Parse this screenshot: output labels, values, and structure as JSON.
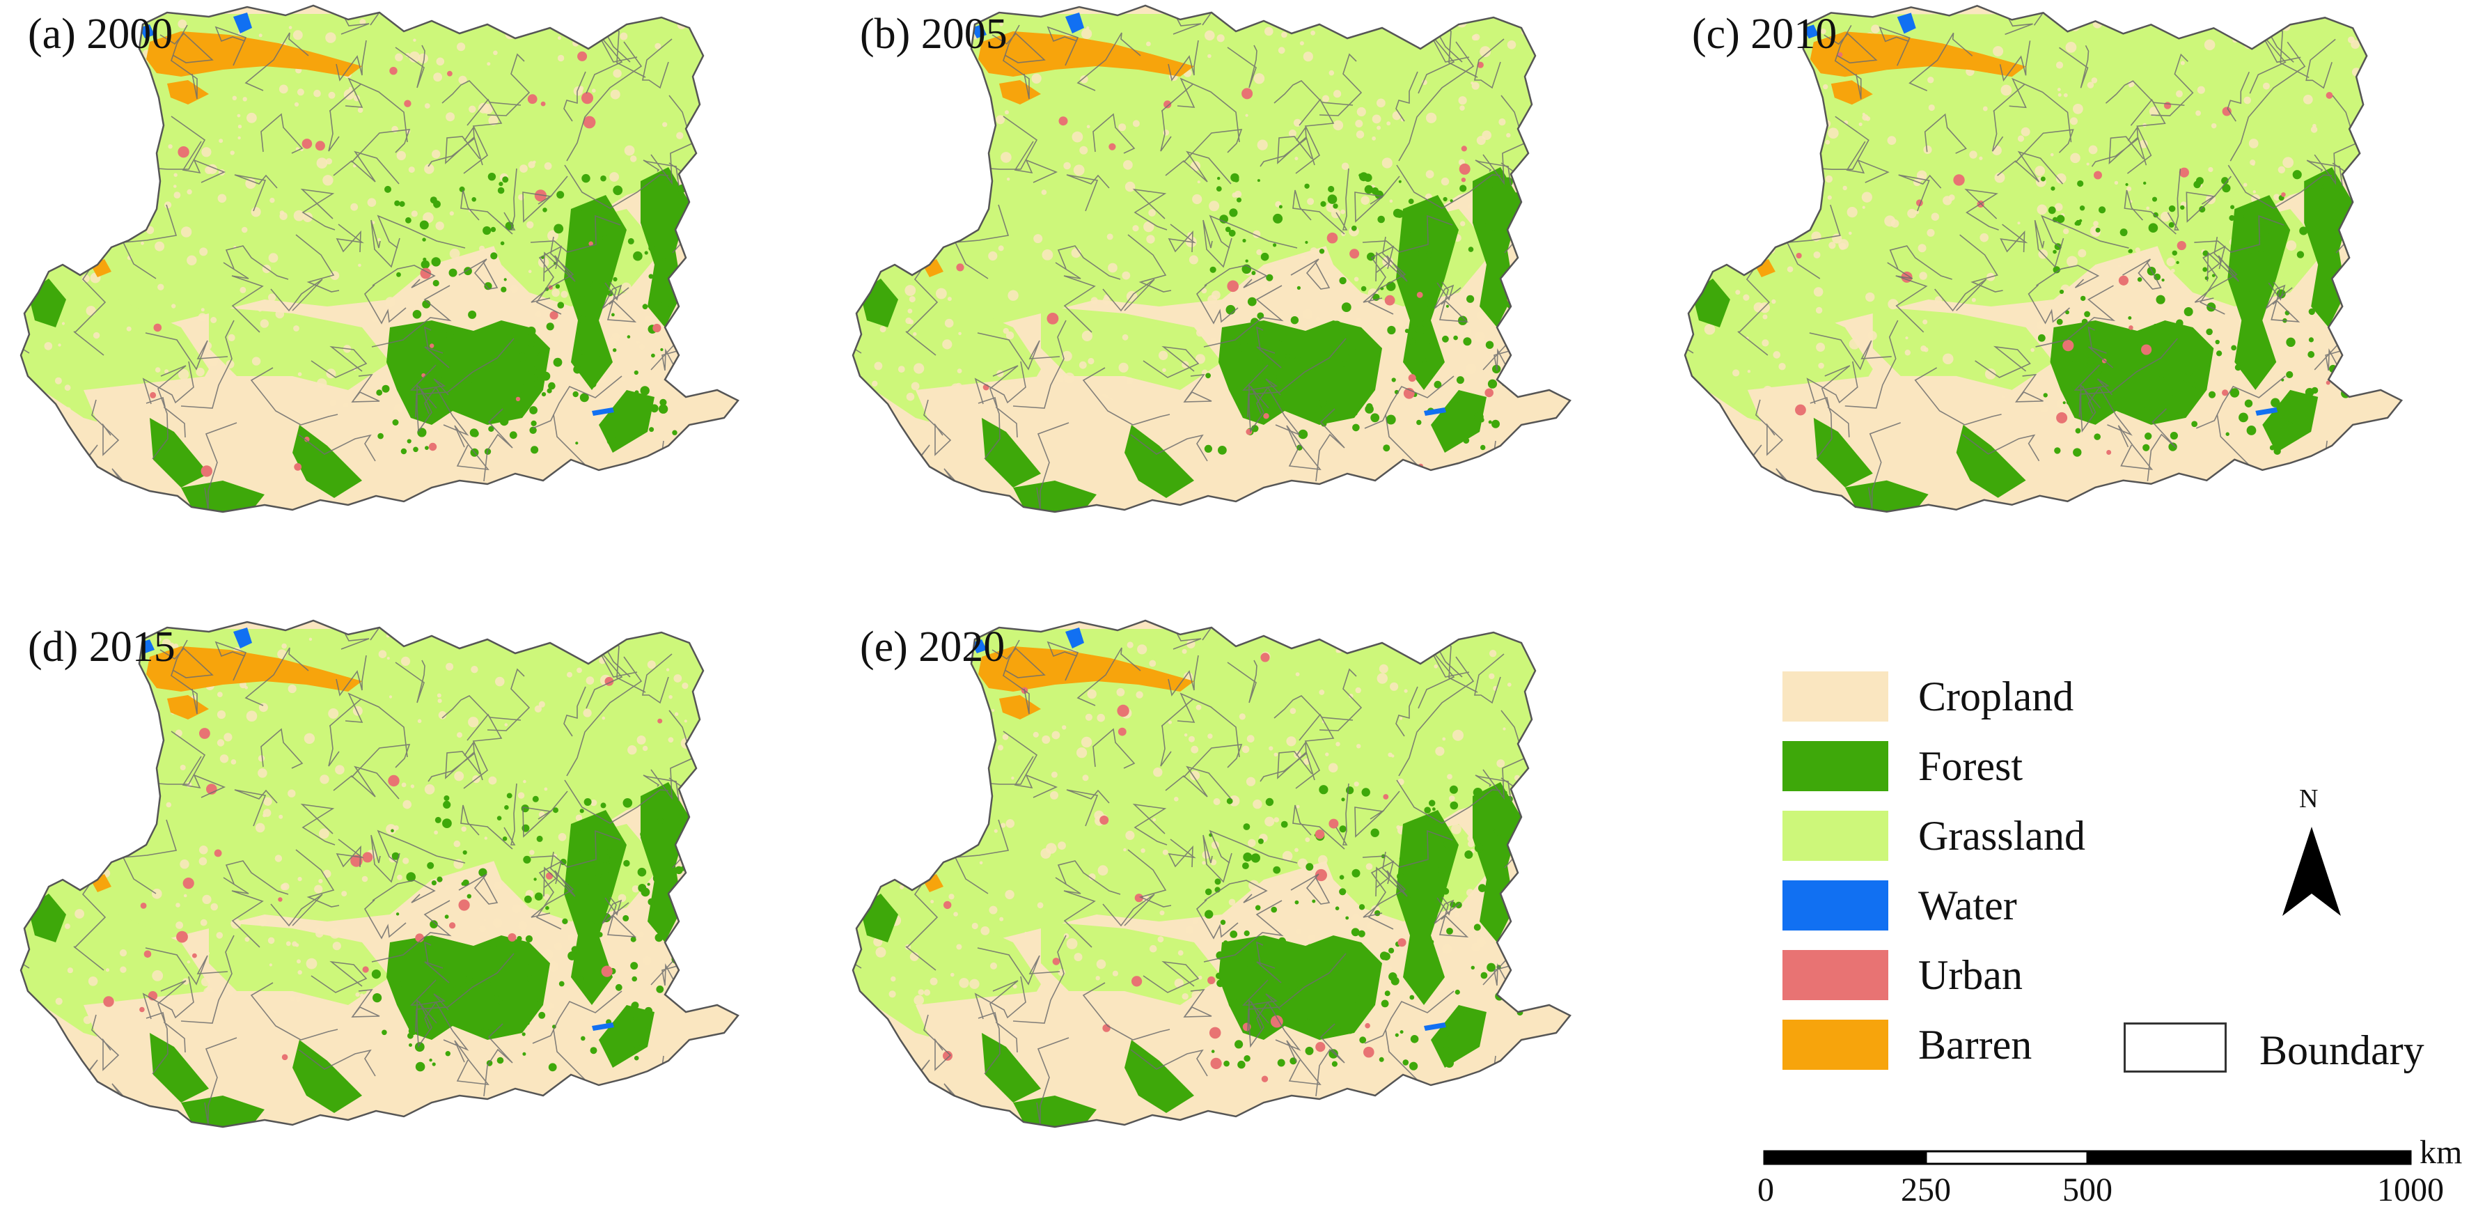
{
  "panels": [
    {
      "id": "a",
      "label": "(a) 2000"
    },
    {
      "id": "b",
      "label": "(b) 2005"
    },
    {
      "id": "c",
      "label": "(c) 2010"
    },
    {
      "id": "d",
      "label": "(d) 2015"
    },
    {
      "id": "e",
      "label": "(e) 2020"
    }
  ],
  "legend": {
    "items": [
      {
        "label": "Cropland",
        "color": "#fae6c0"
      },
      {
        "label": "Forest",
        "color": "#3ea80a"
      },
      {
        "label": "Grassland",
        "color": "#cdf77a"
      },
      {
        "label": "Water",
        "color": "#1170f2"
      },
      {
        "label": "Urban",
        "color": "#e87373"
      },
      {
        "label": "Barren",
        "color": "#f7a40c"
      }
    ],
    "boundary_label": "Boundary"
  },
  "north_arrow": {
    "label": "N"
  },
  "scale_bar": {
    "ticks": [
      "0",
      "250",
      "500",
      "1000"
    ],
    "unit": "km"
  },
  "colors": {
    "cropland": "#fae6c0",
    "forest": "#3ea80a",
    "grassland": "#cdf77a",
    "water": "#1170f2",
    "urban": "#e87373",
    "barren": "#f7a40c",
    "boundary": "#6e6e6e"
  }
}
